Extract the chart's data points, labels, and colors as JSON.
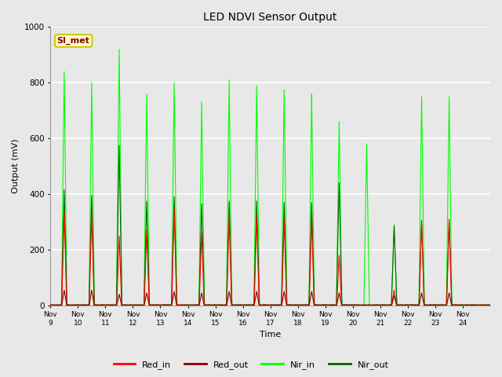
{
  "title": "LED NDVI Sensor Output",
  "xlabel": "Time",
  "ylabel": "Output (mV)",
  "ylim": [
    0,
    1000
  ],
  "fig_facecolor": "#e8e8e8",
  "plot_bg_color": "#e8e8e8",
  "legend_entries": [
    "Red_in",
    "Red_out",
    "Nir_in",
    "Nir_out"
  ],
  "legend_colors": [
    "#ff0000",
    "#8b0000",
    "#00ff00",
    "#006400"
  ],
  "annotation_text": "SI_met",
  "annotation_color": "#8b0000",
  "annotation_bg": "#ffffcc",
  "annotation_border": "#cccc00",
  "x_tick_labels": [
    "Nov 9",
    "Nov 10",
    "Nov 11",
    "Nov 12",
    "Nov 13",
    "Nov 14",
    "Nov 15",
    "Nov 16",
    "Nov 17",
    "Nov 18",
    "Nov 19",
    "Nov 20",
    "Nov 21",
    "Nov 22",
    "Nov 23",
    "Nov 24"
  ],
  "num_days": 16,
  "peaks_nir_in": [
    840,
    800,
    920,
    760,
    800,
    730,
    810,
    790,
    775,
    760,
    660,
    580,
    290,
    750,
    750,
    0
  ],
  "peaks_nir_out": [
    415,
    395,
    575,
    375,
    390,
    365,
    375,
    375,
    370,
    370,
    440,
    0,
    285,
    300,
    305,
    0
  ],
  "peaks_red_in": [
    340,
    335,
    250,
    270,
    350,
    265,
    325,
    325,
    310,
    315,
    180,
    0,
    55,
    305,
    310,
    0
  ],
  "peaks_red_out": [
    55,
    55,
    40,
    45,
    50,
    45,
    50,
    50,
    50,
    50,
    45,
    0,
    35,
    45,
    45,
    0
  ]
}
